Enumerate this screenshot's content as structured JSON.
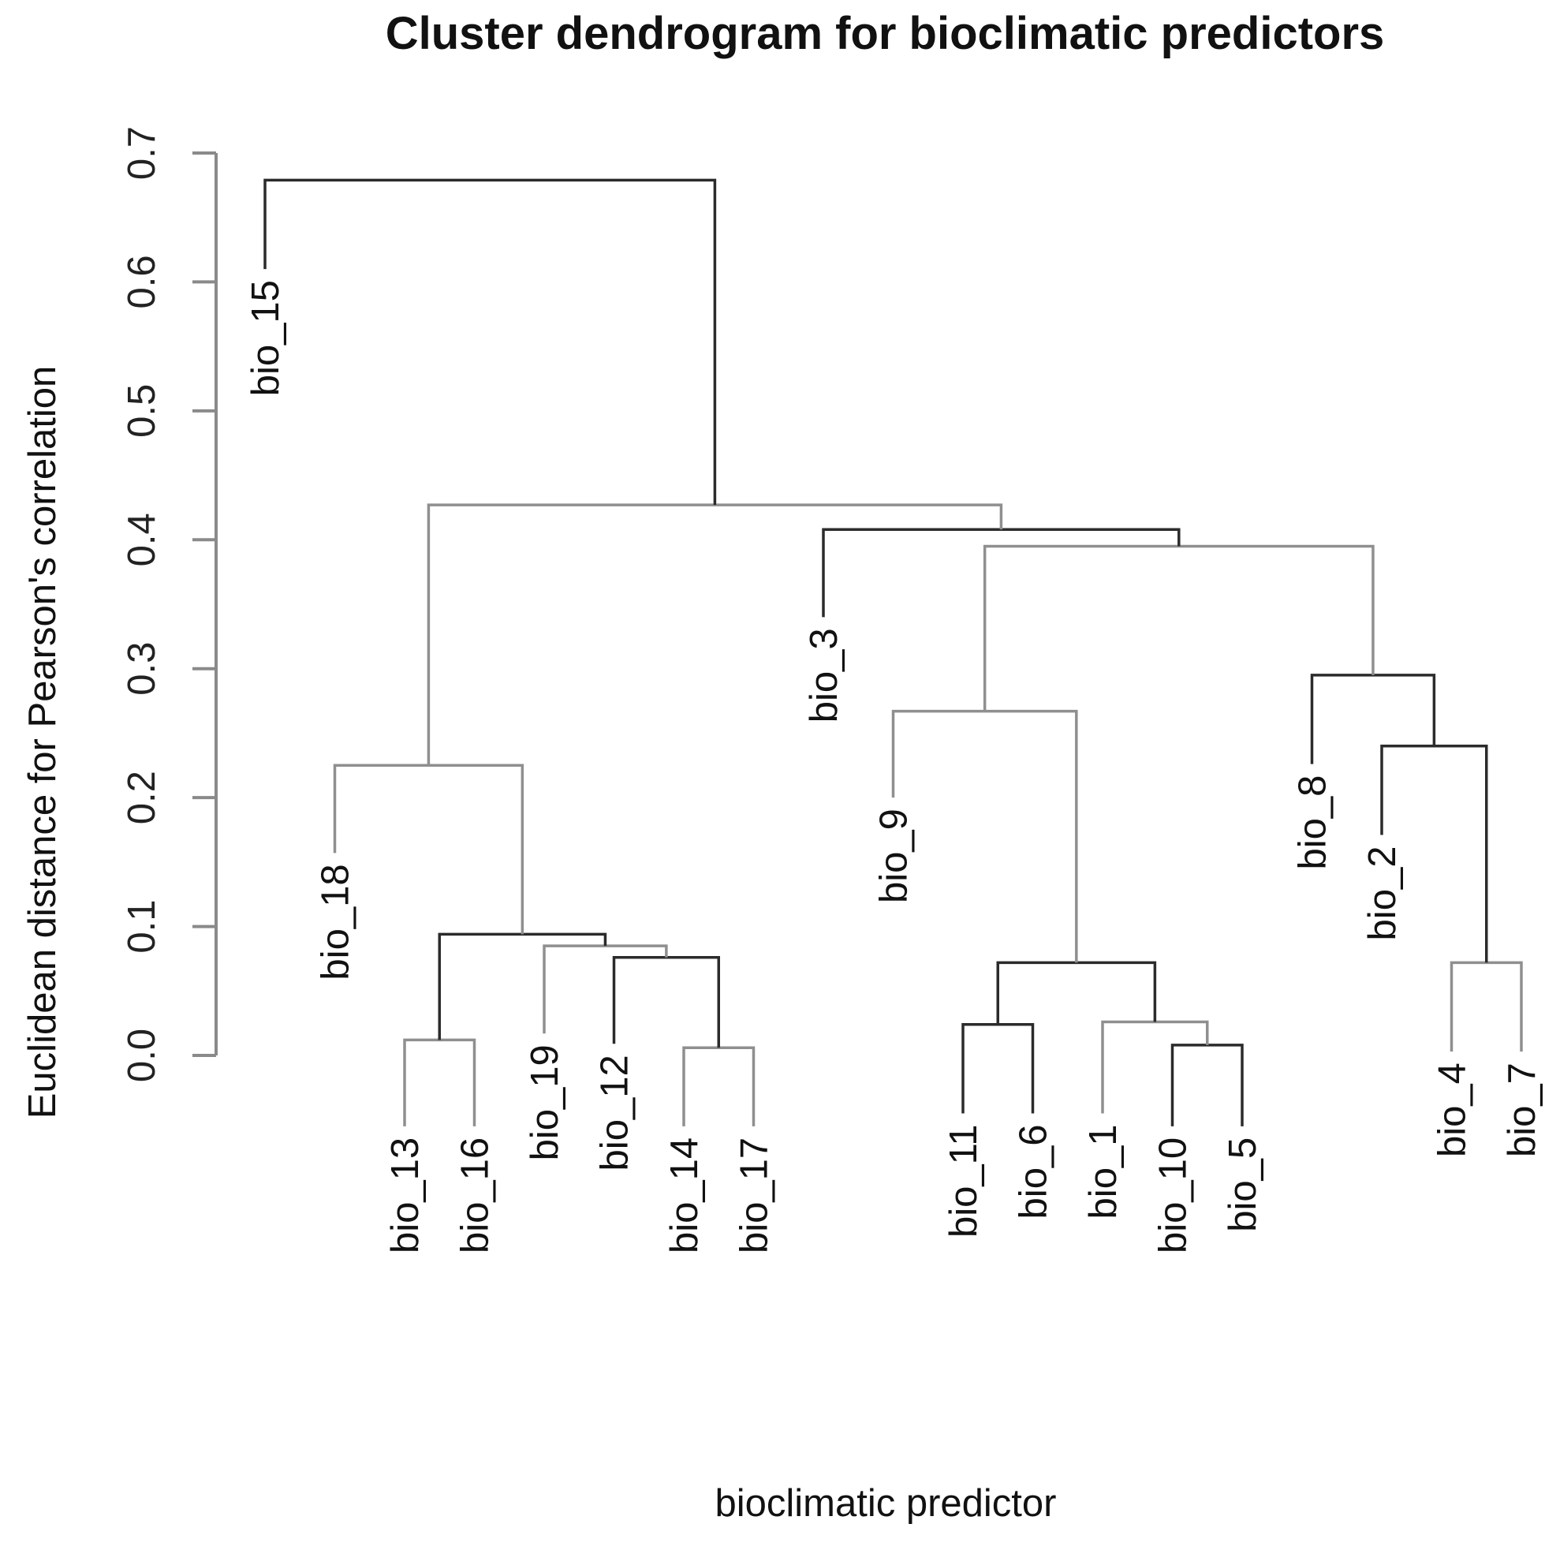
{
  "chart_data": {
    "type": "dendrogram",
    "title": "Cluster dendrogram for bioclimatic predictors",
    "xlabel": "bioclimatic predictor",
    "ylabel": "Euclidean distance for Pearson's correlation",
    "ylim": [
      0,
      0.7
    ],
    "yticks": [
      "0.0",
      "0.1",
      "0.2",
      "0.3",
      "0.4",
      "0.5",
      "0.6",
      "0.7"
    ],
    "leaf_order": [
      "bio_15",
      "bio_18",
      "bio_13",
      "bio_16",
      "bio_19",
      "bio_12",
      "bio_14",
      "bio_17",
      "bio_3",
      "bio_9",
      "bio_11",
      "bio_6",
      "bio_1",
      "bio_10",
      "bio_5",
      "bio_8",
      "bio_2",
      "bio_4",
      "bio_7"
    ],
    "leaf_label_top": [
      0.61,
      0.157,
      -0.055,
      -0.055,
      0.017,
      0.009,
      -0.055,
      -0.055,
      0.34,
      0.2,
      -0.045,
      -0.045,
      -0.045,
      -0.055,
      -0.055,
      0.226,
      0.171,
      0.003,
      0.003
    ],
    "merges": [
      {
        "left": "bio_14",
        "right": "bio_17",
        "height": 0.006,
        "id": "m1"
      },
      {
        "left": "bio_5",
        "right": "bio_10",
        "height": 0.008,
        "id": "m2"
      },
      {
        "left": "bio_13",
        "right": "bio_16",
        "height": 0.012,
        "id": "m3"
      },
      {
        "left": "bio_11",
        "right": "bio_6",
        "height": 0.024,
        "id": "m4"
      },
      {
        "left": "bio_1",
        "right": "m2",
        "height": 0.026,
        "id": "m5"
      },
      {
        "left": "m4",
        "right": "m5",
        "height": 0.072,
        "id": "m6"
      },
      {
        "left": "bio_4",
        "right": "bio_7",
        "height": 0.072,
        "id": "m7"
      },
      {
        "left": "bio_12",
        "right": "m1",
        "height": 0.076,
        "id": "m8"
      },
      {
        "left": "bio_19",
        "right": "m8",
        "height": 0.085,
        "id": "m9"
      },
      {
        "left": "m3",
        "right": "m9",
        "height": 0.094,
        "id": "m10"
      },
      {
        "left": "bio_18",
        "right": "m10",
        "height": 0.225,
        "id": "m11"
      },
      {
        "left": "bio_2",
        "right": "m7",
        "height": 0.24,
        "id": "m12"
      },
      {
        "left": "bio_9",
        "right": "m6",
        "height": 0.267,
        "id": "m13"
      },
      {
        "left": "bio_8",
        "right": "m12",
        "height": 0.295,
        "id": "m14"
      },
      {
        "left": "m13",
        "right": "m14",
        "height": 0.395,
        "id": "m15"
      },
      {
        "left": "bio_3",
        "right": "m15",
        "height": 0.408,
        "id": "m16"
      },
      {
        "left": "m11",
        "right": "m16",
        "height": 0.427,
        "id": "m17"
      },
      {
        "left": "bio_15",
        "right": "m17",
        "height": 0.679,
        "id": "m18"
      }
    ]
  },
  "colors": {
    "branch_dark": "#2b2b2b",
    "branch_light": "#8f8f8f",
    "axis": "#8a8a8a",
    "text": "#111111",
    "background": "#ffffff"
  }
}
